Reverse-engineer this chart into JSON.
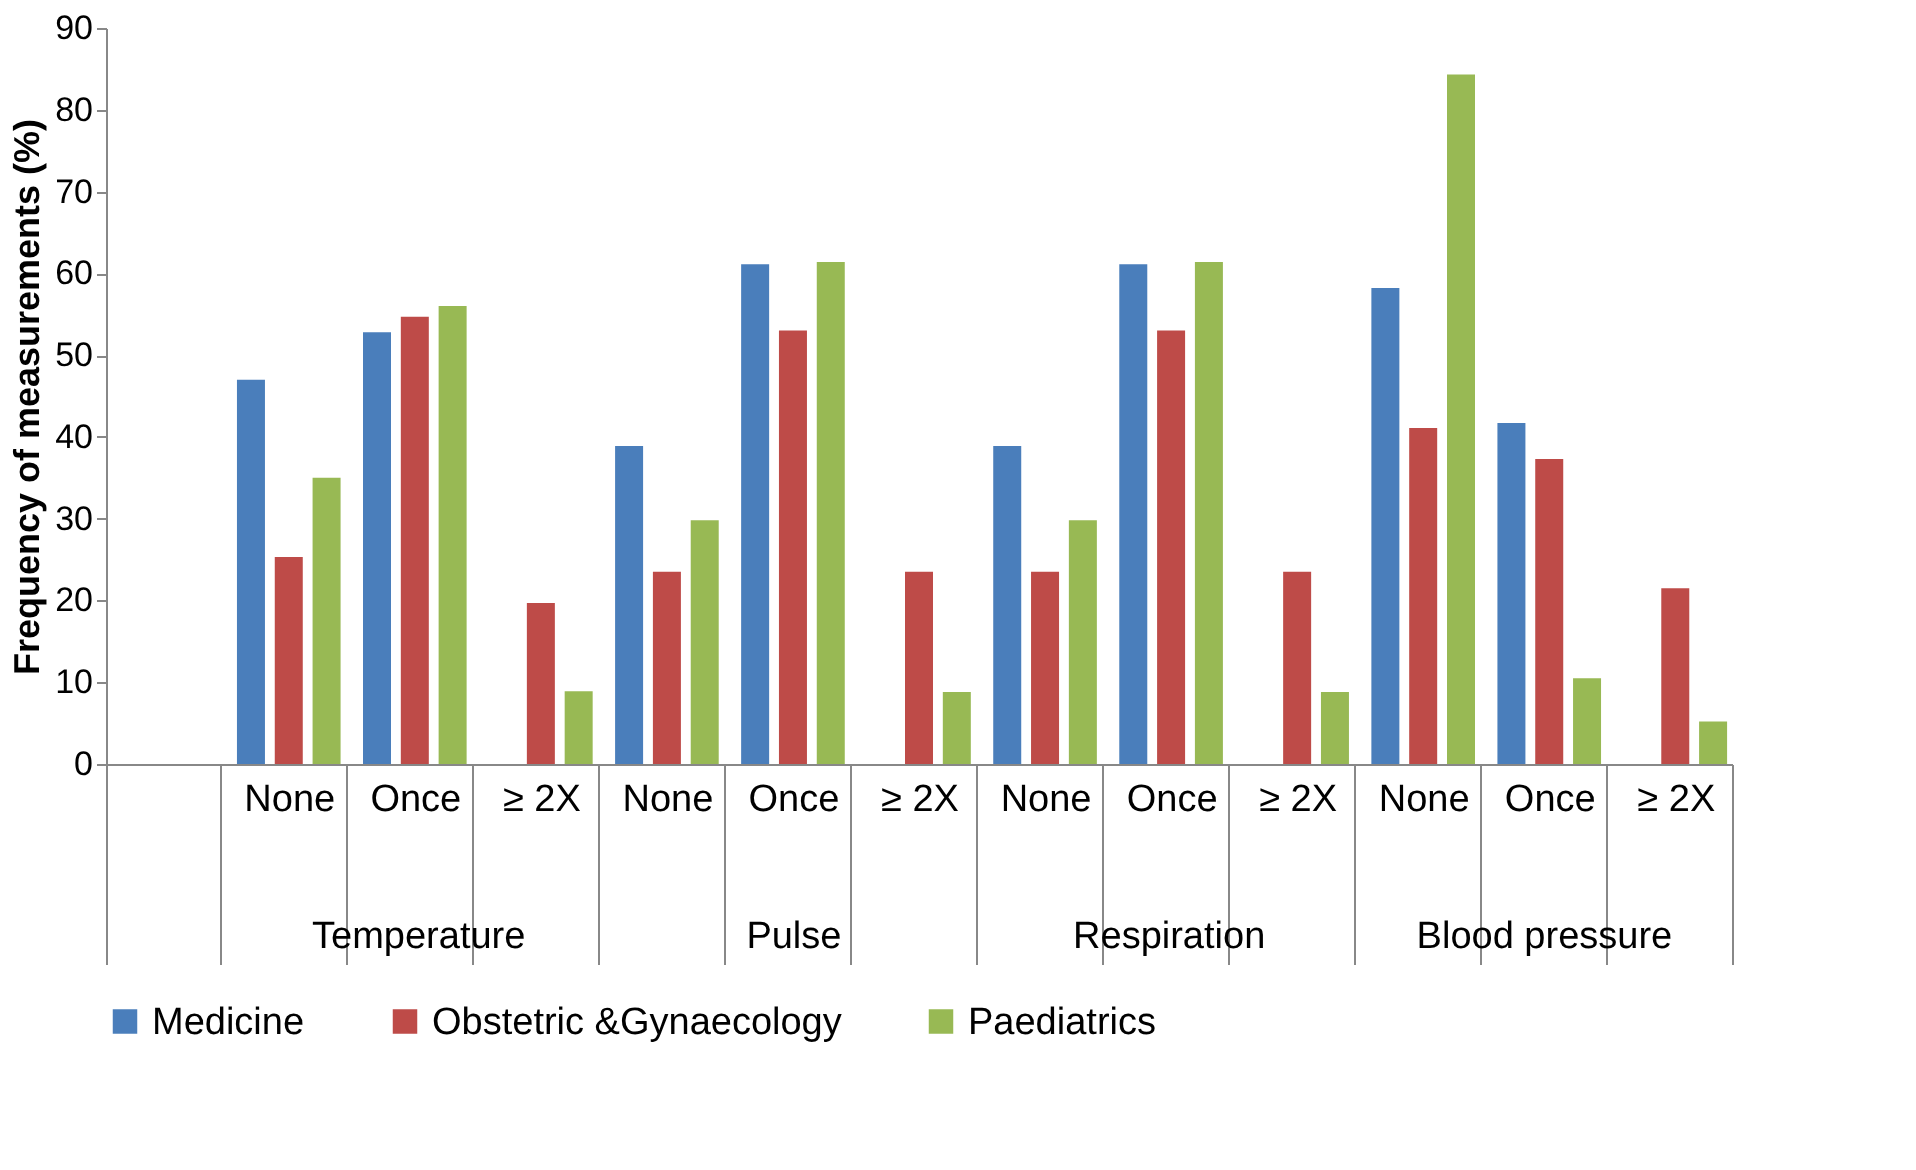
{
  "chart_data": {
    "type": "bar",
    "ylabel": "Frequency of measurements (%)",
    "categories": [
      null,
      "None",
      "Once",
      "≥ 2X",
      "None",
      "Once",
      "≥ 2X",
      "None",
      "Once",
      "≥ 2X",
      "None",
      "Once",
      "≥ 2X"
    ],
    "annotations": [
      "Temperature",
      "Pulse",
      "Respiration",
      "Blood pressure"
    ],
    "series": [
      {
        "name": "Medicine",
        "color": "#4a7ebb",
        "values": [
          null,
          47,
          52.8,
          0,
          38.9,
          61.1,
          0,
          38.9,
          61.1,
          0,
          58.2,
          41.7,
          0
        ]
      },
      {
        "name": "Obstetric &Gynaecology",
        "color": "#be4b48",
        "values": [
          null,
          25.3,
          54.7,
          19.7,
          23.5,
          53,
          23.5,
          23.5,
          53,
          23.5,
          41.1,
          37.3,
          21.5
        ]
      },
      {
        "name": "Paediatrics",
        "color": "#98b954",
        "values": [
          null,
          35,
          56,
          8.9,
          29.8,
          61.4,
          8.8,
          29.8,
          61.4,
          8.8,
          84.3,
          10.5,
          5.2
        ]
      }
    ],
    "ylim": [
      0,
      90
    ],
    "yticks": [
      0,
      10,
      20,
      30,
      40,
      50,
      60,
      70,
      80,
      90
    ],
    "grid": false,
    "legend": "bottom"
  }
}
